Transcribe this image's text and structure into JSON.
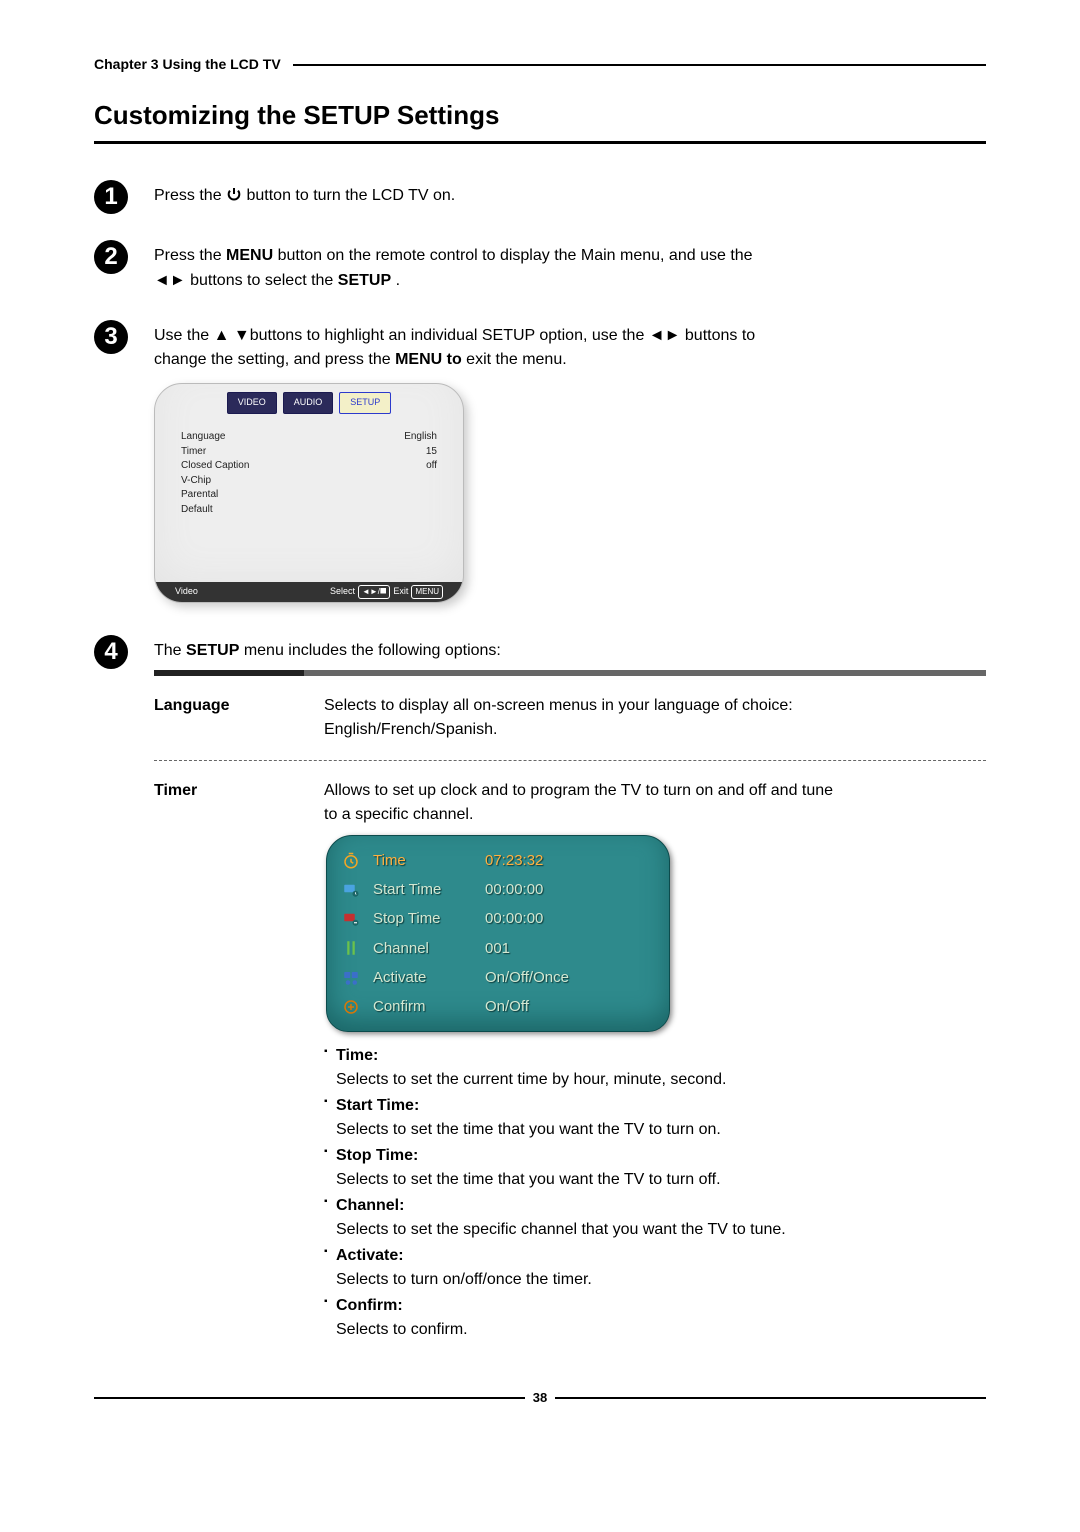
{
  "chapter_header": "Chapter 3 Using the LCD TV",
  "section_title": "Customizing the SETUP Settings",
  "steps": {
    "1": {
      "pre": "Press the ",
      "post": " button to turn the LCD TV on."
    },
    "2": {
      "l1a": "Press the ",
      "l1b": "MENU",
      "l1c": " button on the remote control to display the Main menu, and use the ",
      "l2a": "◄► buttons to select the ",
      "l2b": "SETUP",
      "l2c": "."
    },
    "3": {
      "l1a": "Use the  ▲ ▼buttons to highlight an individual SETUP option, use the ◄► buttons to ",
      "l2a": "change the setting, and press the ",
      "l2b": "MENU to ",
      "l2c": "exit the menu."
    },
    "4": {
      "l1a": "The ",
      "l1b": "SETUP",
      "l1c": " menu includes the following options:"
    }
  },
  "osd": {
    "tabs": {
      "video": "VIDEO",
      "audio": "AUDIO",
      "setup": "SETUP"
    },
    "rows": [
      {
        "label": "Language",
        "value": "English"
      },
      {
        "label": "Timer",
        "value": "15"
      },
      {
        "label": "Closed Caption",
        "value": "off"
      },
      {
        "label": "V-Chip",
        "value": ""
      },
      {
        "label": "Parental",
        "value": ""
      },
      {
        "label": "Default",
        "value": ""
      }
    ],
    "footer": {
      "left": "Video",
      "sel": "Select",
      "exit": "Exit",
      "selkeys": "◄►/⯀",
      "exitkey": "MENU"
    }
  },
  "options": {
    "language": {
      "label": "Language",
      "desc1": "Selects to display all on-screen menus in your language of choice:",
      "desc2": "English/French/Spanish."
    },
    "timer": {
      "label": "Timer",
      "desc1": "Allows to set up clock and to program the TV to turn on and off and tune",
      "desc2": "to a specific channel.",
      "rows": [
        {
          "label": "Time",
          "value": "07:23:32",
          "active": true
        },
        {
          "label": "Start Time",
          "value": "00:00:00"
        },
        {
          "label": "Stop Time",
          "value": "00:00:00"
        },
        {
          "label": "Channel",
          "value": "001"
        },
        {
          "label": "Activate",
          "value": "On/Off/Once"
        },
        {
          "label": "Confirm",
          "value": "On/Off"
        }
      ],
      "bullets": [
        {
          "title": "Time:",
          "text": "Selects to set the current time by hour, minute, second."
        },
        {
          "title": "Start Time:",
          "text": "Selects to set the time that you want the TV to turn on."
        },
        {
          "title": "Stop Time:",
          "text": "Selects to set the time that you want the TV to turn off."
        },
        {
          "title": "Channel:",
          "text": "Selects to set the specific channel that you want the TV to tune."
        },
        {
          "title": "Activate:",
          "text": "Selects to turn on/off/once the timer."
        },
        {
          "title": "Confirm:",
          "text": "Selects to confirm."
        }
      ],
      "icon_colors": [
        "#f5a623",
        "#4aa3e0",
        "#c53030",
        "#6cc24a",
        "#3b6fc9",
        "#d97706"
      ]
    }
  },
  "page_number": "38"
}
